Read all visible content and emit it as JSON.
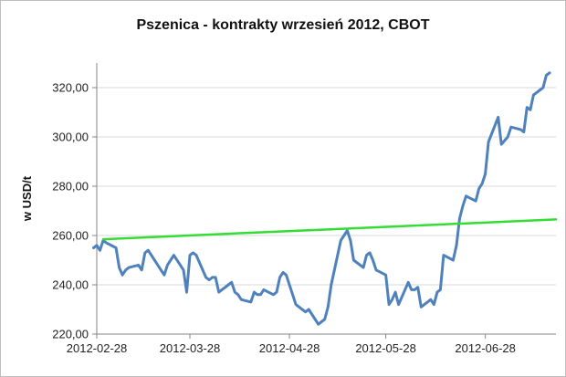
{
  "chart_data": {
    "type": "line",
    "title": "Pszenica - kontrakty wrzesień 2012, CBOT",
    "xlabel": "",
    "ylabel": "w USD/t",
    "ylim": [
      220,
      330
    ],
    "yticks": [
      220,
      240,
      260,
      280,
      300,
      320
    ],
    "ytick_labels": [
      "220,00",
      "240,00",
      "260,00",
      "280,00",
      "300,00",
      "320,00"
    ],
    "xlim": [
      "2012-02-28",
      "2012-07-20"
    ],
    "xtick_labels": [
      "2012-02-28",
      "2012-03-28",
      "2012-04-28",
      "2012-05-28",
      "2012-06-28"
    ],
    "grid": "horizontal",
    "legend": "none",
    "colors": {
      "price_line": "#4f81bd",
      "trend_line": "#33dd33",
      "grid": "#d9d9d9",
      "axis": "#868686"
    },
    "series": [
      {
        "role": "price",
        "x": [
          "2012-02-27",
          "2012-02-28",
          "2012-02-29",
          "2012-03-01",
          "2012-03-02",
          "2012-03-05",
          "2012-03-06",
          "2012-03-07",
          "2012-03-08",
          "2012-03-09",
          "2012-03-12",
          "2012-03-13",
          "2012-03-14",
          "2012-03-15",
          "2012-03-16",
          "2012-03-19",
          "2012-03-20",
          "2012-03-21",
          "2012-03-22",
          "2012-03-23",
          "2012-03-26",
          "2012-03-27",
          "2012-03-28",
          "2012-03-29",
          "2012-03-30",
          "2012-04-02",
          "2012-04-03",
          "2012-04-04",
          "2012-04-05",
          "2012-04-06",
          "2012-04-09",
          "2012-04-10",
          "2012-04-11",
          "2012-04-12",
          "2012-04-13",
          "2012-04-16",
          "2012-04-17",
          "2012-04-18",
          "2012-04-19",
          "2012-04-20",
          "2012-04-23",
          "2012-04-24",
          "2012-04-25",
          "2012-04-26",
          "2012-04-27",
          "2012-04-30",
          "2012-05-01",
          "2012-05-02",
          "2012-05-03",
          "2012-05-04",
          "2012-05-07",
          "2012-05-08",
          "2012-05-09",
          "2012-05-10",
          "2012-05-11",
          "2012-05-14",
          "2012-05-15",
          "2012-05-16",
          "2012-05-17",
          "2012-05-18",
          "2012-05-21",
          "2012-05-22",
          "2012-05-23",
          "2012-05-24",
          "2012-05-25",
          "2012-05-28",
          "2012-05-29",
          "2012-05-30",
          "2012-05-31",
          "2012-06-01",
          "2012-06-04",
          "2012-06-05",
          "2012-06-06",
          "2012-06-07",
          "2012-06-08",
          "2012-06-11",
          "2012-06-12",
          "2012-06-13",
          "2012-06-14",
          "2012-06-15",
          "2012-06-18",
          "2012-06-19",
          "2012-06-20",
          "2012-06-21",
          "2012-06-22",
          "2012-06-25",
          "2012-06-26",
          "2012-06-27",
          "2012-06-28",
          "2012-06-29",
          "2012-07-02",
          "2012-07-03",
          "2012-07-05",
          "2012-07-06",
          "2012-07-09",
          "2012-07-10",
          "2012-07-11",
          "2012-07-12",
          "2012-07-13",
          "2012-07-16",
          "2012-07-17",
          "2012-07-18"
        ],
        "values": [
          255,
          256,
          254,
          258,
          257,
          255,
          247,
          244,
          246,
          247,
          248,
          246,
          253,
          254,
          252,
          246,
          244,
          248,
          250,
          252,
          246,
          237,
          252,
          253,
          252,
          243,
          242,
          243,
          243,
          237,
          240,
          241,
          237,
          236,
          234,
          233,
          237,
          236,
          236,
          238,
          236,
          237,
          243,
          245,
          244,
          232,
          231,
          230,
          229,
          230,
          224,
          225,
          226,
          231,
          240,
          258,
          260,
          262,
          258,
          250,
          247,
          252,
          253,
          250,
          246,
          244,
          232,
          234,
          237,
          232,
          241,
          238,
          238,
          239,
          231,
          234,
          232,
          237,
          238,
          252,
          250,
          256,
          267,
          272,
          276,
          274,
          279,
          281,
          285,
          298,
          308,
          297,
          300,
          304,
          303,
          302,
          312,
          311,
          317,
          320,
          325,
          326
        ]
      },
      {
        "role": "trend",
        "x": [
          "2012-03-01",
          "2012-07-20"
        ],
        "values": [
          258.5,
          266.5
        ]
      }
    ]
  }
}
